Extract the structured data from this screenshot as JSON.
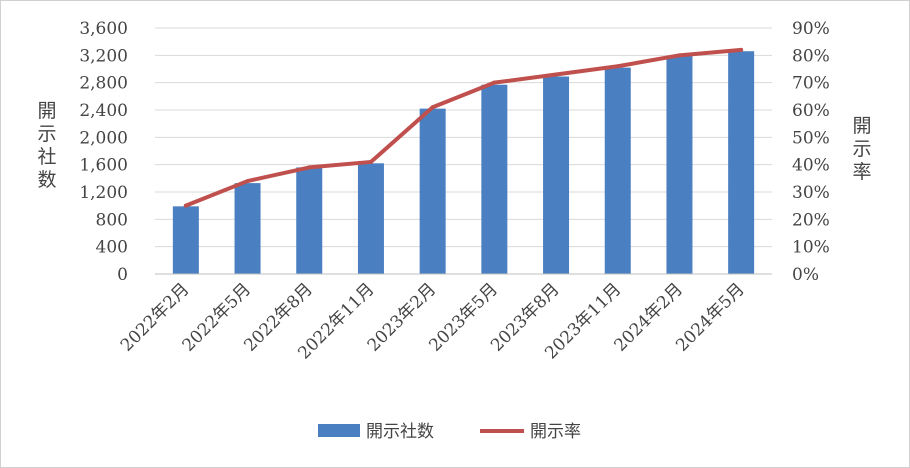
{
  "chart_data": {
    "type": "bar",
    "categories": [
      "2022年2月",
      "2022年5月",
      "2022年8月",
      "2022年11月",
      "2023年2月",
      "2023年5月",
      "2023年8月",
      "2023年11月",
      "2024年2月",
      "2024年5月"
    ],
    "series": [
      {
        "name": "開示社数",
        "type": "bar",
        "axis": "left",
        "color": "#4a7fc1",
        "values": [
          990,
          1330,
          1560,
          1620,
          2420,
          2770,
          2890,
          3020,
          3190,
          3260
        ]
      },
      {
        "name": "開示率",
        "type": "line",
        "axis": "right",
        "color": "#c0504d",
        "values": [
          25,
          34,
          39,
          41,
          61,
          70,
          73,
          76,
          80,
          82
        ]
      }
    ],
    "yaxis_left": {
      "label": "開示社数",
      "min": 0,
      "max": 3600,
      "ticks": [
        0,
        400,
        800,
        1200,
        1600,
        2000,
        2400,
        2800,
        3200,
        3600
      ],
      "tick_labels": [
        "0",
        "400",
        "800",
        "1,200",
        "1,600",
        "2,000",
        "2,400",
        "2,800",
        "3,200",
        "3,600"
      ]
    },
    "yaxis_right": {
      "label": "開示率",
      "min": 0,
      "max": 90,
      "ticks": [
        0,
        10,
        20,
        30,
        40,
        50,
        60,
        70,
        80,
        90
      ],
      "tick_labels": [
        "0%",
        "10%",
        "20%",
        "30%",
        "40%",
        "50%",
        "60%",
        "70%",
        "80%",
        "90%"
      ]
    },
    "grid": true,
    "legend_position": "bottom"
  }
}
